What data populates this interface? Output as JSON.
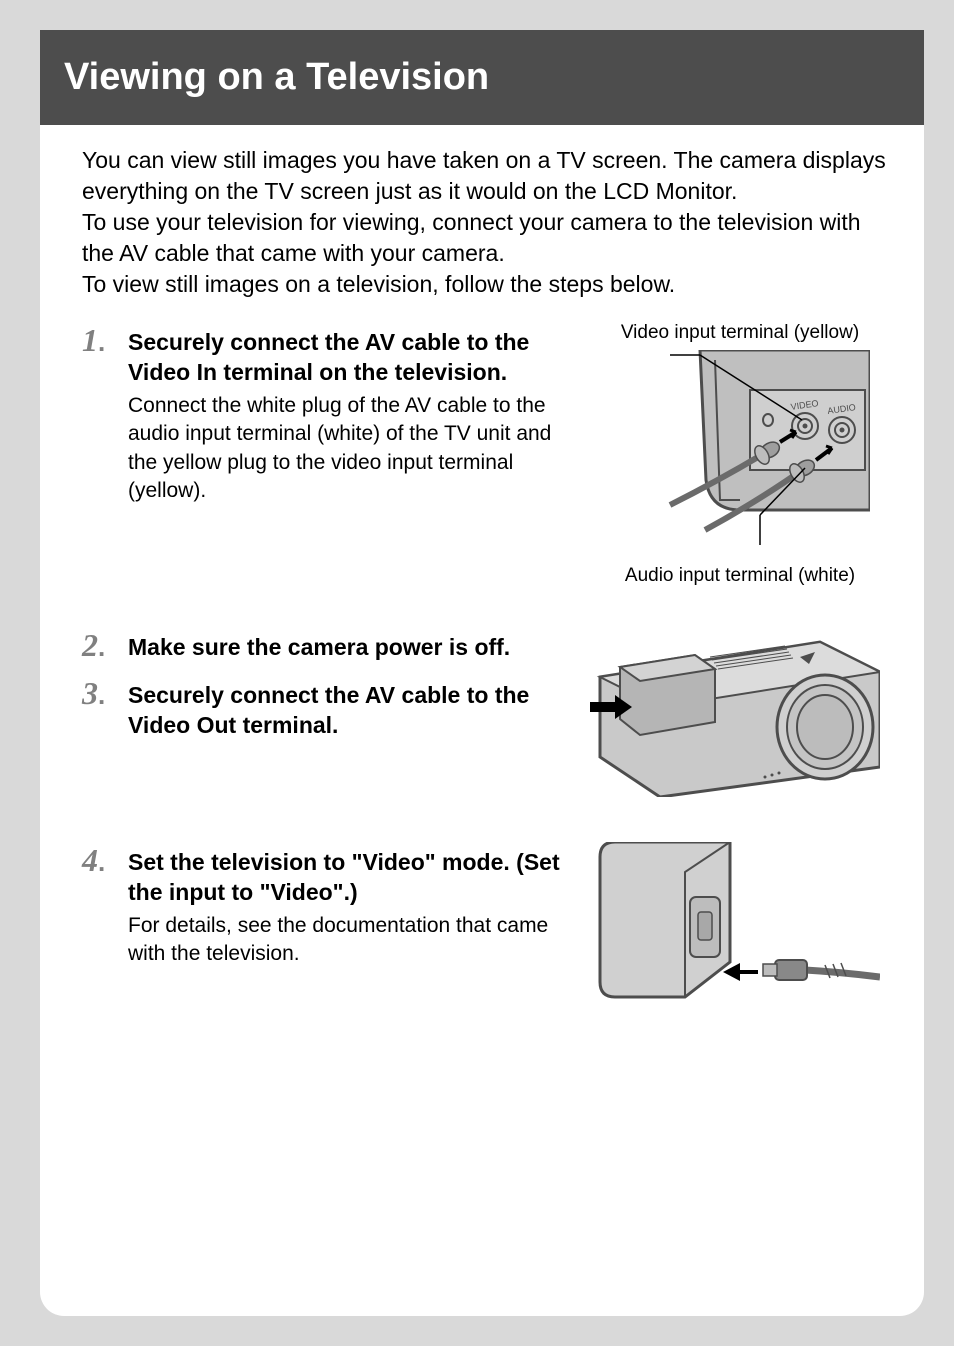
{
  "header": {
    "title": "Viewing on a Television"
  },
  "intro": "You can view still images you have taken on a TV screen. The camera displays everything on the TV screen just as it would on the LCD Monitor.\nTo use your television for viewing, connect your camera to the television with the AV cable that came with your camera.\nTo view still images on a television, follow the steps below.",
  "steps": [
    {
      "num": "1",
      "heading": "Securely connect the AV cable to the Video In terminal on the television.",
      "text": "Connect the white plug of the AV cable to the audio input terminal (white) of the TV unit and the yellow plug to the video input terminal (yellow)."
    },
    {
      "num": "2",
      "heading": "Make sure the camera power is off.",
      "text": ""
    },
    {
      "num": "3",
      "heading": "Securely connect the AV cable to the Video Out terminal.",
      "text": ""
    },
    {
      "num": "4",
      "heading": "Set the television to \"Video\" mode. (Set the input to \"Video\".)",
      "text": "For details, see the documentation that came with the television."
    }
  ],
  "diagram1": {
    "label_top": "Video input terminal (yellow)",
    "label_bottom": "Audio input terminal (white)",
    "jack_video": "VIDEO",
    "jack_audio": "AUDIO",
    "colors": {
      "tv_body": "#bfbfbf",
      "tv_edge": "#4d4d4d",
      "plug": "#9e9e9e",
      "plug_dark": "#6b6b6b",
      "arrow": "#000000"
    }
  },
  "diagram2": {
    "colors": {
      "body": "#c9c9c9",
      "edge": "#4d4d4d",
      "dark": "#3a3a3a",
      "arrow": "#000000",
      "highlight": "#e6e6e6"
    }
  },
  "diagram3": {
    "colors": {
      "body": "#d0d0d0",
      "edge": "#4d4d4d",
      "plug": "#888888",
      "arrow": "#000000"
    }
  },
  "style": {
    "page_bg": "#d9d9d9",
    "card_bg": "#ffffff",
    "header_bg": "#4d4d4d",
    "header_fg": "#ffffff",
    "num_color": "#808080",
    "text_color": "#000000"
  }
}
